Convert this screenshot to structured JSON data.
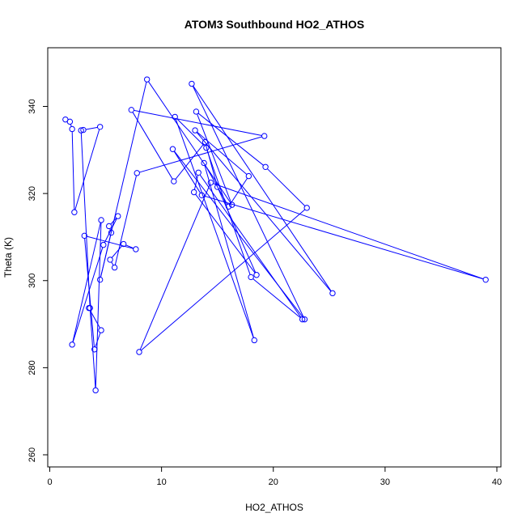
{
  "chart_data": {
    "type": "scatter",
    "title": "ATOM3 Southbound HO2_ATHOS",
    "xlabel": "HO2_ATHOS",
    "ylabel": "Theta (K)",
    "xlim": [
      0,
      40
    ],
    "ylim": [
      260,
      350
    ],
    "xticks": [
      0,
      10,
      20,
      30,
      40
    ],
    "yticks": [
      260,
      280,
      300,
      320,
      340
    ],
    "grid": false,
    "legend": "none",
    "series_color": "#0000ff",
    "marker": "open-circle",
    "connected": true,
    "x": [
      1.4,
      1.8,
      2.0,
      2.2,
      4.5,
      3.0,
      2.8,
      3.6,
      4.1,
      4.6,
      2.0,
      4.8,
      6.1,
      5.3,
      5.5,
      4.5,
      8.7,
      16.3,
      13.1,
      19.3,
      23.0,
      8.0,
      14.4,
      39.0,
      13.6,
      11.0,
      22.8,
      12.7,
      25.3,
      13.0,
      17.8,
      16.0,
      13.8,
      18.3,
      11.2,
      14.0,
      18.0,
      22.6,
      13.3,
      12.9,
      18.5,
      15.0,
      13.9,
      11.1,
      7.3,
      19.2,
      7.8,
      5.8,
      5.4,
      6.6,
      7.7,
      3.1,
      4.0,
      4.6,
      3.5
    ],
    "y": [
      337.0,
      336.5,
      334.8,
      315.7,
      335.3,
      334.6,
      334.5,
      293.7,
      274.8,
      313.9,
      285.3,
      308.2,
      314.8,
      312.5,
      311.0,
      300.2,
      346.2,
      317.4,
      338.8,
      326.1,
      316.7,
      283.6,
      322.5,
      300.2,
      319.6,
      330.2,
      291.1,
      345.2,
      297.1,
      334.5,
      324.0,
      317.0,
      327.0,
      286.3,
      337.6,
      330.5,
      300.8,
      291.1,
      324.8,
      320.3,
      301.3,
      321.5,
      331.8,
      322.8,
      339.2,
      333.2,
      324.7,
      303.0,
      304.8,
      308.4,
      307.2,
      310.3,
      284.2,
      288.6,
      293.7
    ]
  }
}
